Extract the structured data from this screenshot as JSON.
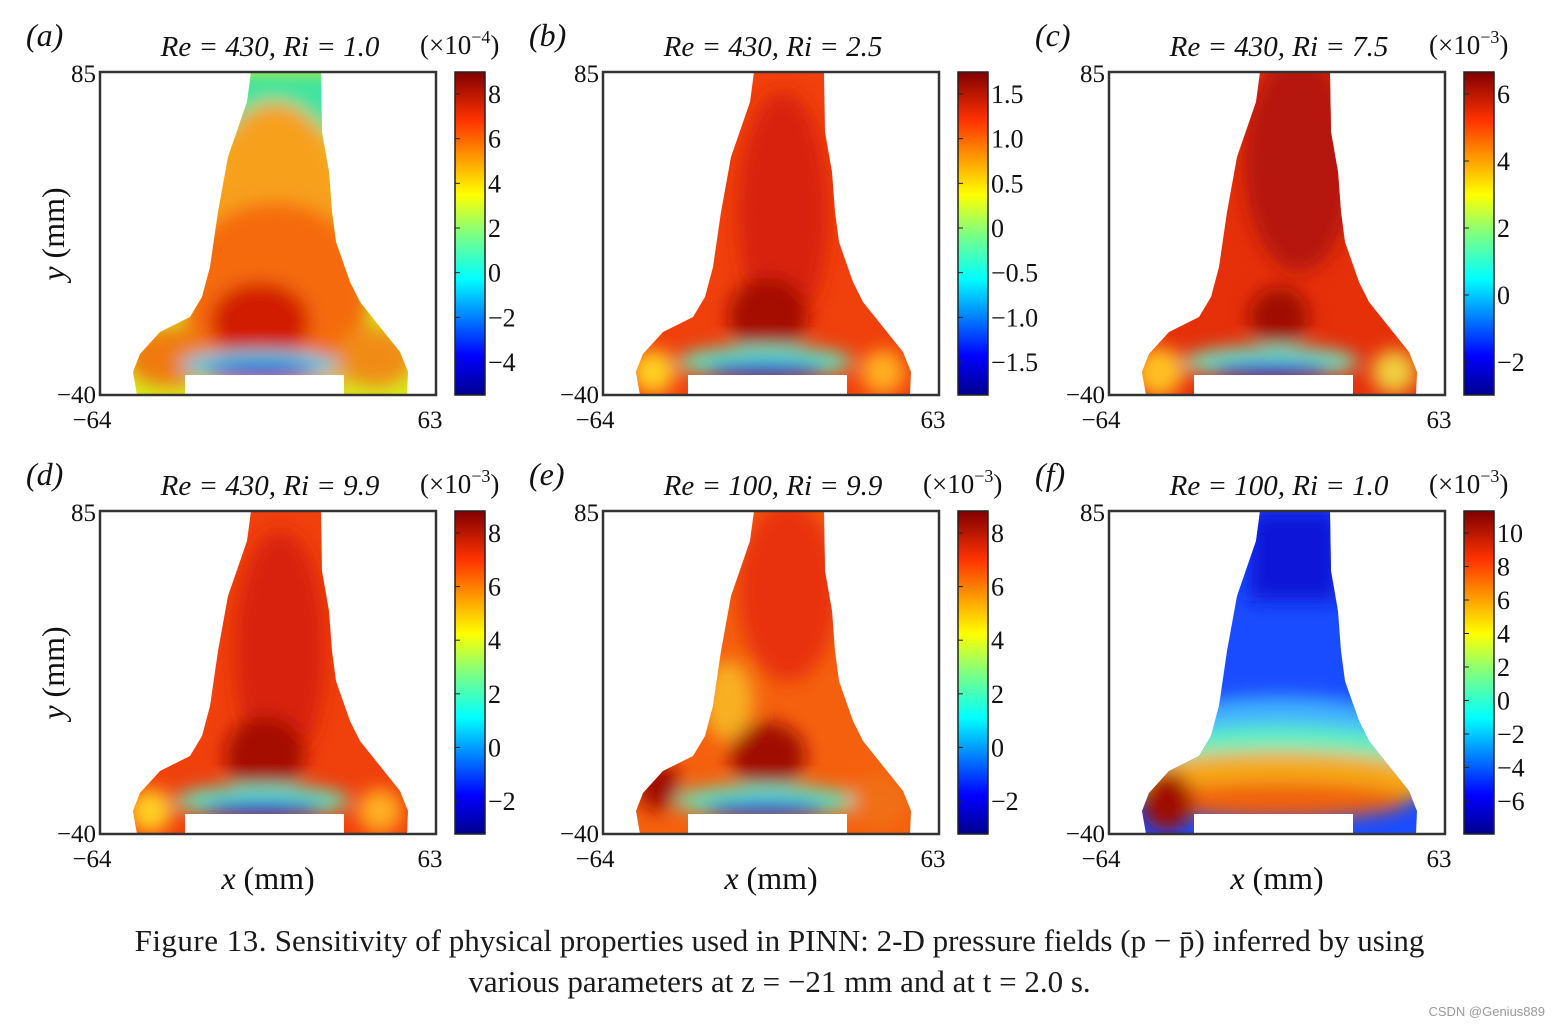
{
  "figure": {
    "panels": [
      {
        "label": "(a)",
        "title": "Re = 430, Ri = 1.0",
        "scale": "(×10",
        "scale_exp": "−4",
        "cbar_ticks": [
          "8",
          "6",
          "4",
          "2",
          "0",
          "−2",
          "−4"
        ],
        "pattern": "a"
      },
      {
        "label": "(b)",
        "title": "Re = 430, Ri = 2.5",
        "scale": "",
        "scale_exp": "",
        "cbar_ticks": [
          "1.5",
          "1.0",
          "0.5",
          "0",
          "−0.5",
          "−1.0",
          "−1.5"
        ],
        "pattern": "b"
      },
      {
        "label": "(c)",
        "title": "Re = 430, Ri = 7.5",
        "scale": "(×10",
        "scale_exp": "−3",
        "cbar_ticks": [
          "6",
          "4",
          "2",
          "0",
          "−2"
        ],
        "pattern": "c"
      },
      {
        "label": "(d)",
        "title": "Re = 430, Ri = 9.9",
        "scale": "(×10",
        "scale_exp": "−3",
        "cbar_ticks": [
          "8",
          "6",
          "4",
          "2",
          "0",
          "−2"
        ],
        "pattern": "d"
      },
      {
        "label": "(e)",
        "title": "Re = 100, Ri = 9.9",
        "scale": "(×10",
        "scale_exp": "−3",
        "cbar_ticks": [
          "8",
          "6",
          "4",
          "2",
          "0",
          "−2"
        ],
        "pattern": "e"
      },
      {
        "label": "(f)",
        "title": "Re = 100, Ri = 1.0",
        "scale": "(×10",
        "scale_exp": "−3",
        "cbar_ticks": [
          "10",
          "8",
          "6",
          "4",
          "2",
          "0",
          "−2",
          "−4",
          "−6"
        ],
        "pattern": "f"
      }
    ],
    "axes": {
      "x_min": "−64",
      "x_max": "63",
      "y_min": "−40",
      "y_max": "85",
      "x_label": "x (mm)",
      "y_label": "y (mm)"
    }
  },
  "caption": {
    "label": "Figure  13.",
    "line1": " Sensitivity of physical properties used in PINN: 2-D pressure fields (p − p̄) inferred by using",
    "line2": "various parameters at z = −21 mm and at t = 2.0 s."
  },
  "watermark": "CSDN @Genius889"
}
